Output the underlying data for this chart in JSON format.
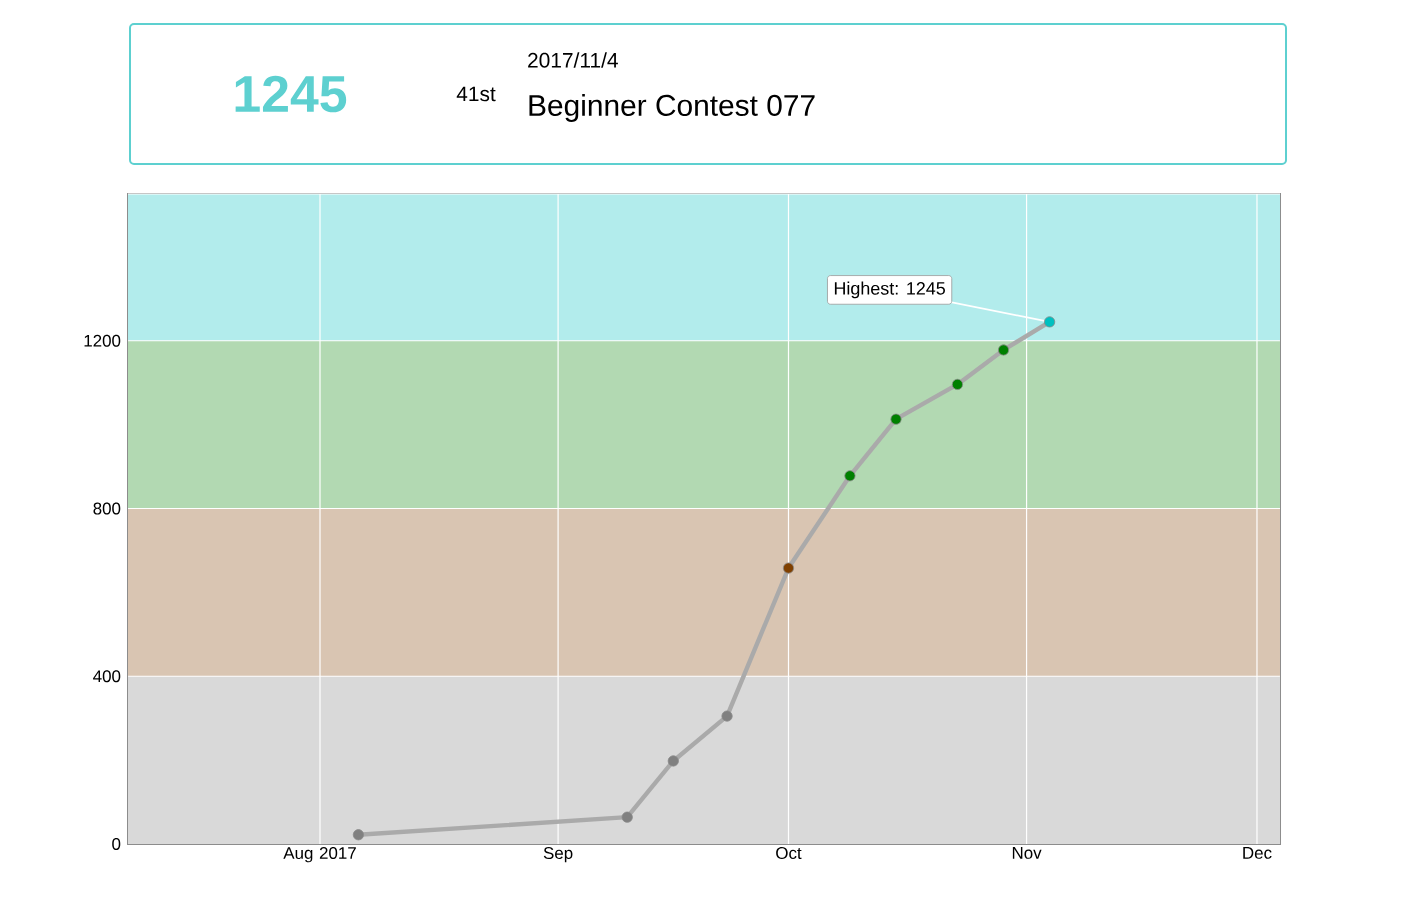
{
  "chart_data": {
    "type": "line",
    "title": "Beginner Contest 077",
    "subtitle": "2017/11/4",
    "annotations": [
      "1245",
      "41st",
      {
        "text": "Highest: 1245",
        "x": "2017-11-04",
        "y": 1245
      }
    ],
    "x": [
      "2017-08-06",
      "2017-09-10",
      "2017-09-16",
      "2017-09-23",
      "2017-10-01",
      "2017-10-09",
      "2017-10-15",
      "2017-10-23",
      "2017-10-29",
      "2017-11-04"
    ],
    "series": [
      {
        "color": "#aaaaaa",
        "values": [
          22,
          64,
          198,
          305,
          658,
          878,
          1013,
          1096,
          1178,
          1245
        ],
        "colors": [
          "#808080",
          "#808080",
          "#808080",
          "#808080",
          "#804000",
          "#008000",
          "#008000",
          "#008000",
          "#008000",
          "#00c0c0"
        ]
      }
    ],
    "marker": "circle",
    "xlim": [
      "2017-07-07",
      "2017-12-04"
    ],
    "xticks": [
      {
        "value": "2017-08-01",
        "label": "Aug 2017"
      },
      {
        "value": "2017-09-01",
        "label": "Sep"
      },
      {
        "value": "2017-10-01",
        "label": "Oct"
      },
      {
        "value": "2017-11-01",
        "label": "Nov"
      },
      {
        "value": "2017-12-01",
        "label": "Dec"
      }
    ],
    "ylim": [
      0,
      1550
    ],
    "yticks": [
      0,
      400,
      800,
      1200
    ],
    "bands": [
      {
        "axis": "y",
        "from": 0,
        "to": 400,
        "color": "#d9d9d9"
      },
      {
        "axis": "y",
        "from": 400,
        "to": 800,
        "color": "#d9c5b2"
      },
      {
        "axis": "y",
        "from": 800,
        "to": 1200,
        "color": "#b2d9b2"
      },
      {
        "axis": "y",
        "from": 1200,
        "to": 1550,
        "color": "#b2ecec"
      }
    ],
    "grid": true
  }
}
